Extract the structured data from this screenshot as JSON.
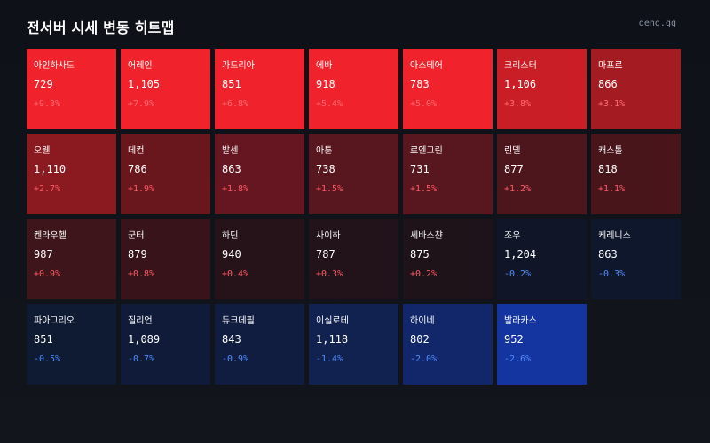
{
  "header": {
    "title": "전서버 시세 변동 히트맵",
    "brand": "deng.gg"
  },
  "tiles": [
    {
      "name": "아인하사드",
      "price": "729",
      "change": "+9.3%",
      "bg": "#f0232c",
      "change_color": "#ff6b73"
    },
    {
      "name": "어레인",
      "price": "1,105",
      "change": "+7.9%",
      "bg": "#f0232c",
      "change_color": "#ff6b73"
    },
    {
      "name": "가드리아",
      "price": "851",
      "change": "+6.8%",
      "bg": "#f0232c",
      "change_color": "#ff6b73"
    },
    {
      "name": "에바",
      "price": "918",
      "change": "+5.4%",
      "bg": "#f0232c",
      "change_color": "#ff6b73"
    },
    {
      "name": "아스테어",
      "price": "783",
      "change": "+5.0%",
      "bg": "#f0232c",
      "change_color": "#ff6b73"
    },
    {
      "name": "크리스터",
      "price": "1,106",
      "change": "+3.8%",
      "bg": "#c91e26",
      "change_color": "#ff6b73"
    },
    {
      "name": "마프르",
      "price": "866",
      "change": "+3.1%",
      "bg": "#a51b22",
      "change_color": "#ff6b73"
    },
    {
      "name": "오웬",
      "price": "1,110",
      "change": "+2.7%",
      "bg": "#8a1920",
      "change_color": "#ff5a64"
    },
    {
      "name": "데컨",
      "price": "786",
      "change": "+1.9%",
      "bg": "#6a161d",
      "change_color": "#ff5a64"
    },
    {
      "name": "발센",
      "price": "863",
      "change": "+1.8%",
      "bg": "#651620",
      "change_color": "#ff5a64"
    },
    {
      "name": "아툰",
      "price": "738",
      "change": "+1.5%",
      "bg": "#58161e",
      "change_color": "#ff5a64"
    },
    {
      "name": "로엔그린",
      "price": "731",
      "change": "+1.5%",
      "bg": "#58161e",
      "change_color": "#ff5a64"
    },
    {
      "name": "린델",
      "price": "877",
      "change": "+1.2%",
      "bg": "#4d151c",
      "change_color": "#ff5a64"
    },
    {
      "name": "캐스톨",
      "price": "818",
      "change": "+1.1%",
      "bg": "#48151b",
      "change_color": "#ff5a64"
    },
    {
      "name": "켄라우헬",
      "price": "987",
      "change": "+0.9%",
      "bg": "#3d151a",
      "change_color": "#ff5a64"
    },
    {
      "name": "군터",
      "price": "879",
      "change": "+0.8%",
      "bg": "#38141a",
      "change_color": "#ff5a64"
    },
    {
      "name": "하딘",
      "price": "940",
      "change": "+0.4%",
      "bg": "#26131a",
      "change_color": "#ff5a64"
    },
    {
      "name": "사이하",
      "price": "787",
      "change": "+0.3%",
      "bg": "#22131a",
      "change_color": "#ff5a64"
    },
    {
      "name": "세바스챤",
      "price": "875",
      "change": "+0.2%",
      "bg": "#1f131a",
      "change_color": "#ff5a64"
    },
    {
      "name": "조우",
      "price": "1,204",
      "change": "-0.2%",
      "bg": "#101628",
      "change_color": "#4f8dff"
    },
    {
      "name": "케레니스",
      "price": "863",
      "change": "-0.3%",
      "bg": "#0f172c",
      "change_color": "#4f8dff"
    },
    {
      "name": "파아그리오",
      "price": "851",
      "change": "-0.5%",
      "bg": "#0f1a33",
      "change_color": "#4f8dff"
    },
    {
      "name": "질리언",
      "price": "1,089",
      "change": "-0.7%",
      "bg": "#0f1b38",
      "change_color": "#4f8dff"
    },
    {
      "name": "듀크데필",
      "price": "843",
      "change": "-0.9%",
      "bg": "#101d40",
      "change_color": "#4f8dff"
    },
    {
      "name": "이실로테",
      "price": "1,118",
      "change": "-1.4%",
      "bg": "#112150",
      "change_color": "#4f8dff"
    },
    {
      "name": "하이네",
      "price": "802",
      "change": "-2.0%",
      "bg": "#12276a",
      "change_color": "#4f8dff"
    },
    {
      "name": "발라카스",
      "price": "952",
      "change": "-2.6%",
      "bg": "#1434a0",
      "change_color": "#4f8dff"
    }
  ]
}
